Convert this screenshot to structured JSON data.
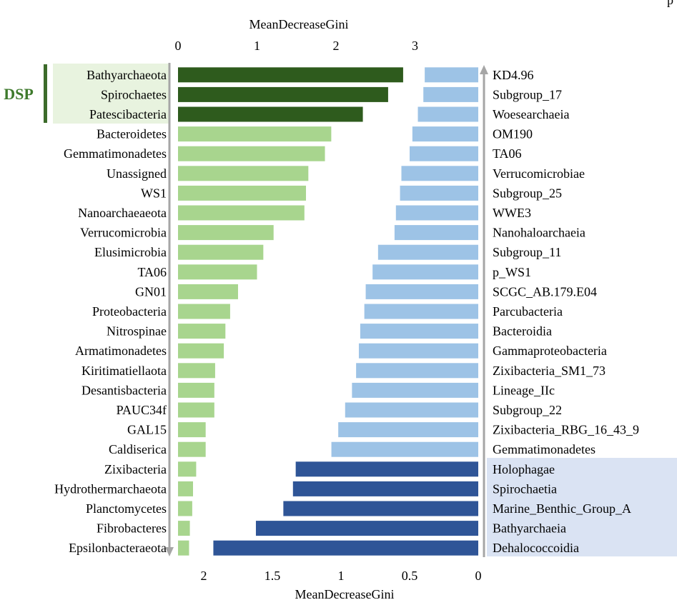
{
  "chart_data": [
    {
      "type": "bar",
      "orientation": "horizontal",
      "xlabel": "MeanDecreaseGini",
      "axis_position": "top",
      "xlim": [
        0,
        3.8
      ],
      "ticks": [
        "0",
        "1",
        "2",
        "3"
      ],
      "group_label": "DSP",
      "categories": [
        "Bathyarchaeota",
        "Spirochaetes",
        "Patescibacteria",
        "Bacteroidetes",
        "Gemmatimonadetes",
        "Unassigned",
        "WS1",
        "Nanoarchaeaeota",
        "Verrucomicrobia",
        "Elusimicrobia",
        "TA06",
        "GN01",
        "Proteobacteria",
        "Nitrospinae",
        "Armatimonadetes",
        "Kiritimatiellaota",
        "Desantisbacteria",
        "PAUC34f",
        "GAL15",
        "Caldiserica",
        "Zixibacteria",
        "Hydrothermarchaeota",
        "Planctomycetes",
        "Fibrobacteres",
        "Epsilonbacteraeota"
      ],
      "values": [
        2.85,
        2.66,
        2.34,
        1.94,
        1.86,
        1.65,
        1.62,
        1.6,
        1.21,
        1.08,
        1.0,
        0.76,
        0.66,
        0.6,
        0.58,
        0.47,
        0.46,
        0.46,
        0.35,
        0.35,
        0.23,
        0.19,
        0.18,
        0.15,
        0.14
      ],
      "colors": [
        "#2e5b1d",
        "#2e5b1d",
        "#2e5b1d",
        "#a8d58e",
        "#a8d58e",
        "#a8d58e",
        "#a8d58e",
        "#a8d58e",
        "#a8d58e",
        "#a8d58e",
        "#a8d58e",
        "#a8d58e",
        "#a8d58e",
        "#a8d58e",
        "#a8d58e",
        "#a8d58e",
        "#a8d58e",
        "#a8d58e",
        "#a8d58e",
        "#a8d58e",
        "#a8d58e",
        "#a8d58e",
        "#a8d58e",
        "#a8d58e",
        "#a8d58e"
      ],
      "highlight_colors": {
        "group_bar": "#3c6b2a",
        "group_bg": "#e8f3df",
        "group_text": "#3e7a2c"
      }
    },
    {
      "type": "bar",
      "orientation": "horizontal",
      "direction": "reversed",
      "xlabel": "MeanDecreaseGini",
      "axis_position": "bottom",
      "xlim": [
        0,
        2.3
      ],
      "ticks": [
        "2",
        "1.5",
        "1",
        "0.5",
        "0"
      ],
      "categories": [
        "KD4.96",
        "Subgroup_17",
        "Woesearchaeia",
        "OM190",
        "TA06",
        "Verrucomicrobiae",
        "Subgroup_25",
        "WWE3",
        "Nanohaloarchaeia",
        "Subgroup_11",
        "p_WS1",
        "SCGC_AB.179.E04",
        "Parcubacteria",
        "Bacteroidia",
        "Gammaproteobacteria",
        "Zixibacteria_SM1_73",
        "Lineage_IIc",
        "Subgroup_22",
        "Zixibacteria_RBG_16_43_9",
        "Gemmatimonadetes",
        "Holophagae",
        "Spirochaetia",
        "Marine_Benthic_Group_A",
        "Bathyarchaeia",
        "Dehalococcoidia"
      ],
      "values": [
        0.39,
        0.4,
        0.44,
        0.48,
        0.5,
        0.56,
        0.57,
        0.6,
        0.61,
        0.73,
        0.77,
        0.82,
        0.83,
        0.86,
        0.87,
        0.89,
        0.92,
        0.97,
        1.02,
        1.07,
        1.33,
        1.35,
        1.42,
        1.62,
        1.93
      ],
      "colors": [
        "#9dc3e6",
        "#9dc3e6",
        "#9dc3e6",
        "#9dc3e6",
        "#9dc3e6",
        "#9dc3e6",
        "#9dc3e6",
        "#9dc3e6",
        "#9dc3e6",
        "#9dc3e6",
        "#9dc3e6",
        "#9dc3e6",
        "#9dc3e6",
        "#9dc3e6",
        "#9dc3e6",
        "#9dc3e6",
        "#9dc3e6",
        "#9dc3e6",
        "#9dc3e6",
        "#9dc3e6",
        "#2f5597",
        "#2f5597",
        "#2f5597",
        "#2f5597",
        "#2f5597"
      ],
      "highlight_colors": {
        "group_bg": "#dae3f3"
      }
    }
  ],
  "partial_title_glyph": "p"
}
